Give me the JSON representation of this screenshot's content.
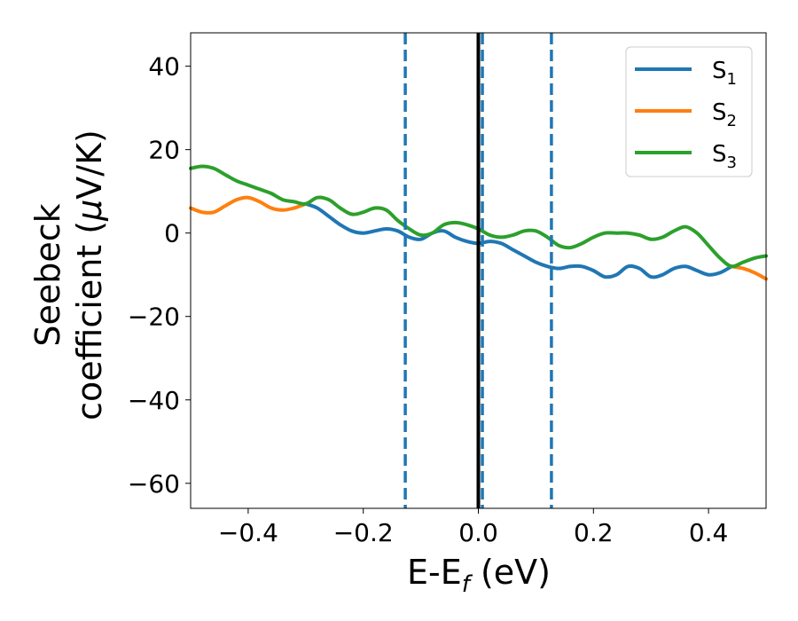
{
  "chart_data": {
    "type": "line",
    "xlabel": "E-E",
    "xlabel_sub": "f",
    "xlabel_unit": " (eV)",
    "ylabel_line1": "Seebeck",
    "ylabel_line2": "coefficient  (",
    "ylabel_mu": "μ",
    "ylabel_unit": "V/K)",
    "xlim": [
      -0.5,
      0.5
    ],
    "ylim": [
      -66,
      48
    ],
    "xticks": [
      -0.4,
      -0.2,
      0.0,
      0.2,
      0.4
    ],
    "xtick_labels": [
      "−0.4",
      "−0.2",
      "0.0",
      "0.2",
      "0.4"
    ],
    "yticks": [
      40,
      20,
      0,
      -20,
      -40,
      -60
    ],
    "ytick_labels": [
      "40",
      "20",
      "0",
      "−20",
      "−40",
      "−60"
    ],
    "grid": false,
    "legend_position": "top-right",
    "vlines": [
      {
        "x": -0.127,
        "style": "dashed",
        "color": "#1f77b4"
      },
      {
        "x": 0.007,
        "style": "dashed",
        "color": "#1f77b4"
      },
      {
        "x": 0.127,
        "style": "dashed",
        "color": "#1f77b4"
      },
      {
        "x": 0.0,
        "style": "solid",
        "color": "#000000"
      }
    ],
    "series": [
      {
        "name": "S",
        "sub": "1",
        "color": "#1f77b4",
        "x": [
          -0.3,
          -0.28,
          -0.26,
          -0.24,
          -0.22,
          -0.2,
          -0.18,
          -0.16,
          -0.14,
          -0.12,
          -0.1,
          -0.08,
          -0.06,
          -0.04,
          -0.02,
          0.0,
          0.02,
          0.04,
          0.06,
          0.08,
          0.1,
          0.12,
          0.14,
          0.16,
          0.18,
          0.2,
          0.22,
          0.24,
          0.26,
          0.28,
          0.3,
          0.32,
          0.34,
          0.36,
          0.38,
          0.4,
          0.42,
          0.44
        ],
        "y": [
          7,
          6,
          4,
          2,
          0.5,
          0,
          0.5,
          1,
          0.5,
          -1,
          -1.5,
          0,
          0.5,
          -1,
          -2,
          -2.5,
          -2,
          -2.5,
          -4,
          -5.5,
          -7,
          -8,
          -8.5,
          -8,
          -8,
          -9,
          -10.5,
          -10,
          -8,
          -8.5,
          -10.5,
          -10,
          -8.5,
          -8,
          -9,
          -10,
          -9.5,
          -8
        ]
      },
      {
        "name": "S",
        "sub": "2",
        "color": "#ff7f0e",
        "x": [
          -0.5,
          -0.48,
          -0.46,
          -0.44,
          -0.42,
          -0.4,
          -0.38,
          -0.36,
          -0.34,
          -0.32,
          -0.3,
          0.44,
          0.46,
          0.48,
          0.5
        ],
        "y": [
          6,
          5,
          5,
          6.5,
          8,
          8.5,
          7.5,
          6,
          5.5,
          6,
          7,
          -8,
          -8.5,
          -9.5,
          -11
        ]
      },
      {
        "name": "S",
        "sub": "3",
        "color": "#2ca02c",
        "x": [
          -0.5,
          -0.48,
          -0.46,
          -0.44,
          -0.42,
          -0.4,
          -0.38,
          -0.36,
          -0.34,
          -0.32,
          -0.3,
          -0.28,
          -0.26,
          -0.24,
          -0.22,
          -0.2,
          -0.18,
          -0.16,
          -0.14,
          -0.12,
          -0.1,
          -0.08,
          -0.06,
          -0.04,
          -0.02,
          0.0,
          0.02,
          0.04,
          0.06,
          0.08,
          0.1,
          0.12,
          0.14,
          0.16,
          0.18,
          0.2,
          0.22,
          0.24,
          0.26,
          0.28,
          0.3,
          0.32,
          0.34,
          0.36,
          0.38,
          0.4,
          0.42,
          0.44,
          0.46,
          0.48,
          0.5
        ],
        "y": [
          15.5,
          16,
          15.5,
          14,
          12.5,
          11.5,
          10.5,
          9.5,
          8,
          7.5,
          7,
          8.5,
          8,
          6,
          4.5,
          5,
          6,
          5.5,
          3,
          1,
          -0.5,
          0,
          2,
          2.5,
          2,
          1,
          -0.5,
          -1,
          -0.5,
          0.5,
          0.5,
          -1,
          -3,
          -3.5,
          -2.5,
          -1,
          0,
          0,
          0,
          -0.5,
          -1.5,
          -1,
          0.5,
          1.5,
          0,
          -3,
          -6,
          -8,
          -7,
          -6,
          -5.5
        ]
      }
    ]
  }
}
